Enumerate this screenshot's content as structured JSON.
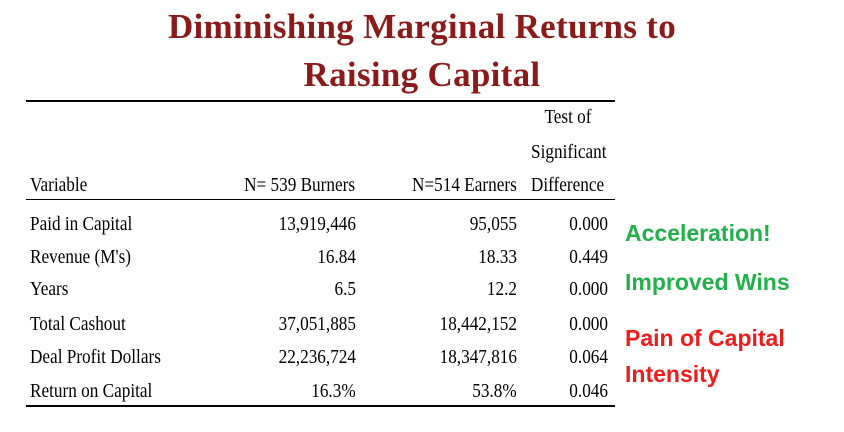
{
  "title": {
    "line1": "Diminishing Marginal Returns to",
    "line2": "Raising Capital"
  },
  "table": {
    "headers": {
      "variable": "Variable",
      "burners": "N= 539 Burners",
      "earners": "N=514 Earners",
      "test_line1": "Test of",
      "test_line2": "Significant",
      "test_line3": "Difference"
    },
    "rows": [
      {
        "variable": "Paid in Capital",
        "burners": "13,919,446",
        "earners": "95,055",
        "test": "0.000"
      },
      {
        "variable": "Revenue (M's)",
        "burners": "16.84",
        "earners": "18.33",
        "test": "0.449"
      },
      {
        "variable": "Years",
        "burners": "6.5",
        "earners": "12.2",
        "test": "0.000"
      },
      {
        "variable": "Total Cashout",
        "burners": "37,051,885",
        "earners": "18,442,152",
        "test": "0.000"
      },
      {
        "variable": "Deal Profit Dollars",
        "burners": "22,236,724",
        "earners": "18,347,816",
        "test": "0.064"
      },
      {
        "variable": "Return on Capital",
        "burners": "16.3%",
        "earners": "53.8%",
        "test": "0.046"
      }
    ]
  },
  "annotations": {
    "acceleration": {
      "text": "Acceleration!",
      "color": "#22b04a"
    },
    "improved_wins": {
      "text": "Improved Wins",
      "color": "#22b04a"
    },
    "pain_line1": {
      "text": "Pain of Capital",
      "color": "#ee1c1c"
    },
    "pain_line2": {
      "text": "Intensity",
      "color": "#ee1c1c"
    }
  }
}
